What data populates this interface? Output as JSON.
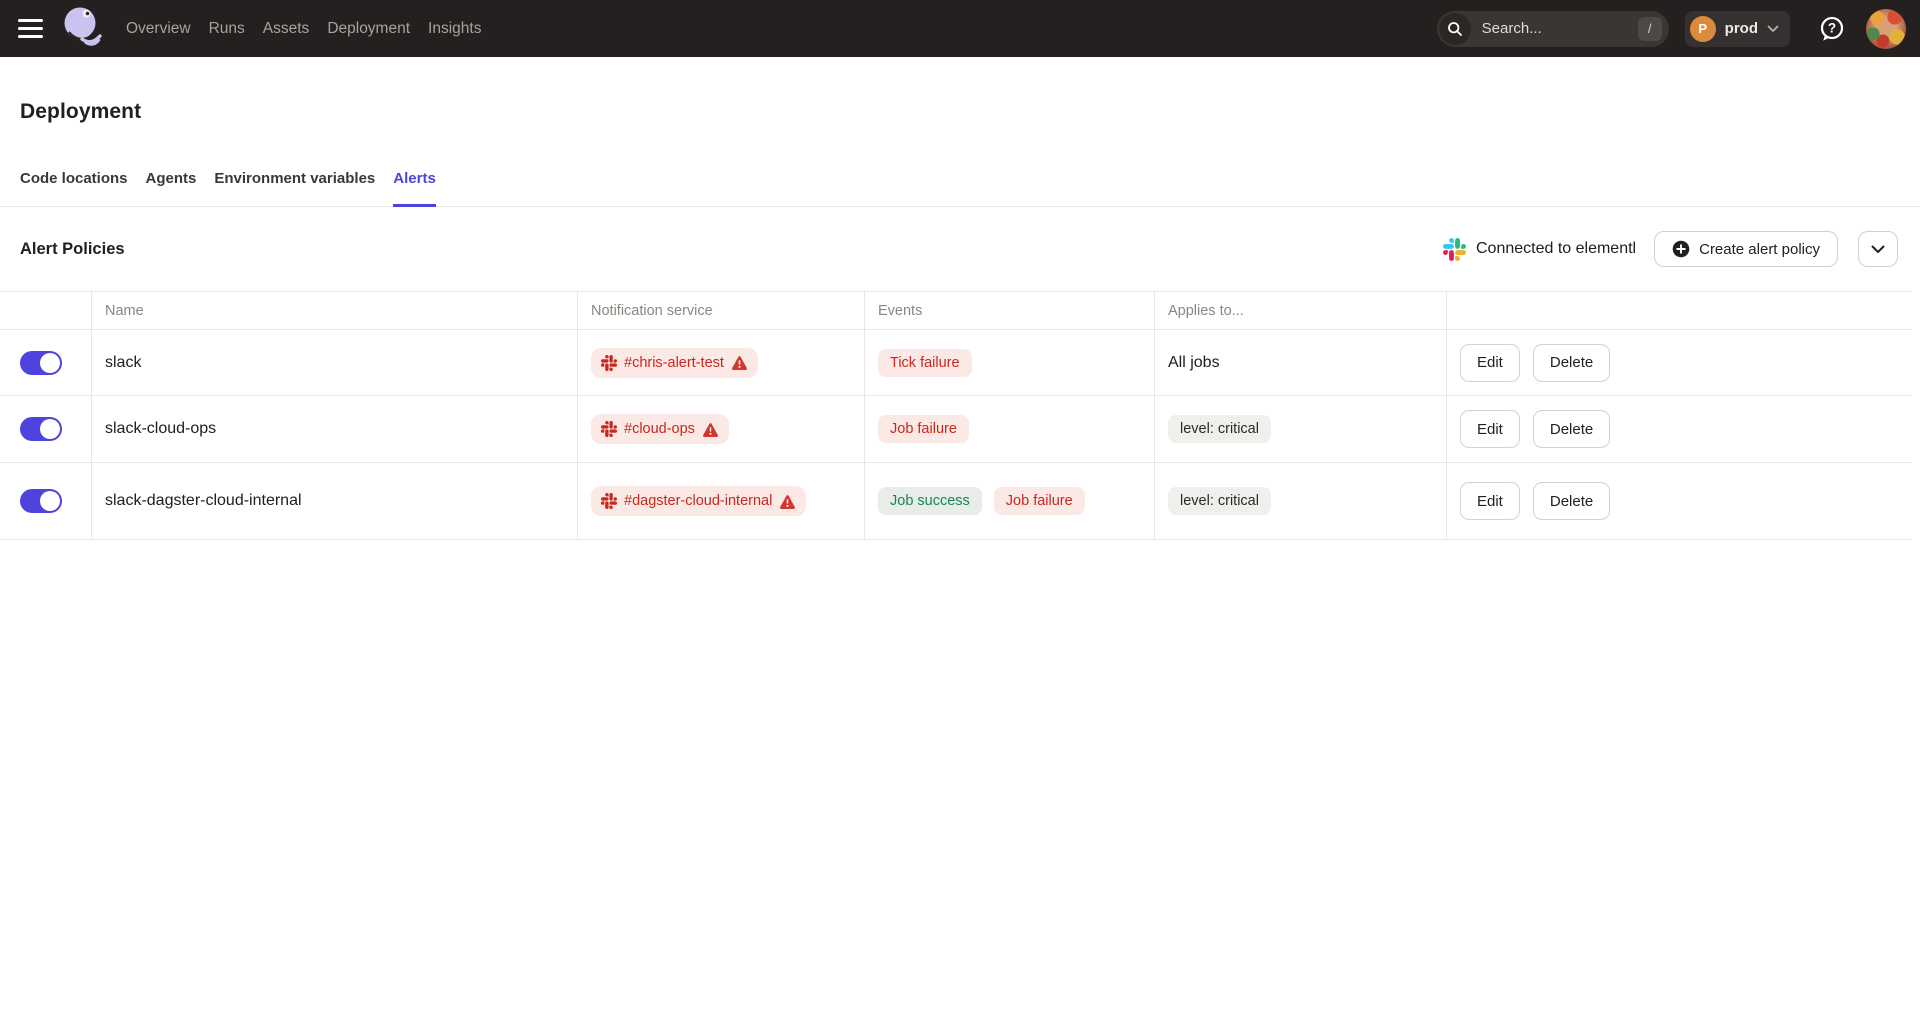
{
  "topbar": {
    "nav_items": [
      {
        "label": "Overview"
      },
      {
        "label": "Runs"
      },
      {
        "label": "Assets"
      },
      {
        "label": "Deployment"
      },
      {
        "label": "Insights"
      }
    ],
    "search": {
      "placeholder": "Search...",
      "shortcut_key": "/"
    },
    "org": {
      "initial": "P",
      "name": "prod"
    }
  },
  "page": {
    "title": "Deployment"
  },
  "tabs": [
    {
      "label": "Code locations",
      "active": false
    },
    {
      "label": "Agents",
      "active": false
    },
    {
      "label": "Environment variables",
      "active": false
    },
    {
      "label": "Alerts",
      "active": true
    }
  ],
  "alerts_section": {
    "heading": "Alert Policies",
    "connected_status": "Connected to elementl",
    "create_button_label": "Create alert policy",
    "table": {
      "columns": [
        "Name",
        "Notification service",
        "Events",
        "Applies to..."
      ],
      "action_labels": [
        "Edit",
        "Delete"
      ],
      "rows": [
        {
          "enabled": true,
          "name": "slack",
          "notification": {
            "service": "slack",
            "channel": "#chris-alert-test",
            "warning": true
          },
          "events": [
            {
              "label": "Tick failure",
              "variant": "error"
            }
          ],
          "applies_to": {
            "label": "All jobs",
            "variant": "plain"
          }
        },
        {
          "enabled": true,
          "name": "slack-cloud-ops",
          "notification": {
            "service": "slack",
            "channel": "#cloud-ops",
            "warning": true
          },
          "events": [
            {
              "label": "Job failure",
              "variant": "error"
            }
          ],
          "applies_to": {
            "label": "level: critical",
            "variant": "tag"
          }
        },
        {
          "enabled": true,
          "name": "slack-dagster-cloud-internal",
          "notification": {
            "service": "slack",
            "channel": "#dagster-cloud-internal",
            "warning": true
          },
          "events": [
            {
              "label": "Job success",
              "variant": "success"
            },
            {
              "label": "Job failure",
              "variant": "error"
            }
          ],
          "applies_to": {
            "label": "level: critical",
            "variant": "tag"
          }
        }
      ]
    }
  },
  "colors": {
    "accent": "#4F43DD",
    "error_text": "#C9281E",
    "error_bg": "#FBE9E5",
    "success_text": "#1B8456",
    "success_bg": "#E8EDE9",
    "topbar_bg": "#242020",
    "slack_blue": "#36C5F0",
    "slack_green": "#2EB67D",
    "slack_yellow": "#ECB22E",
    "slack_pink": "#E01E5A"
  }
}
